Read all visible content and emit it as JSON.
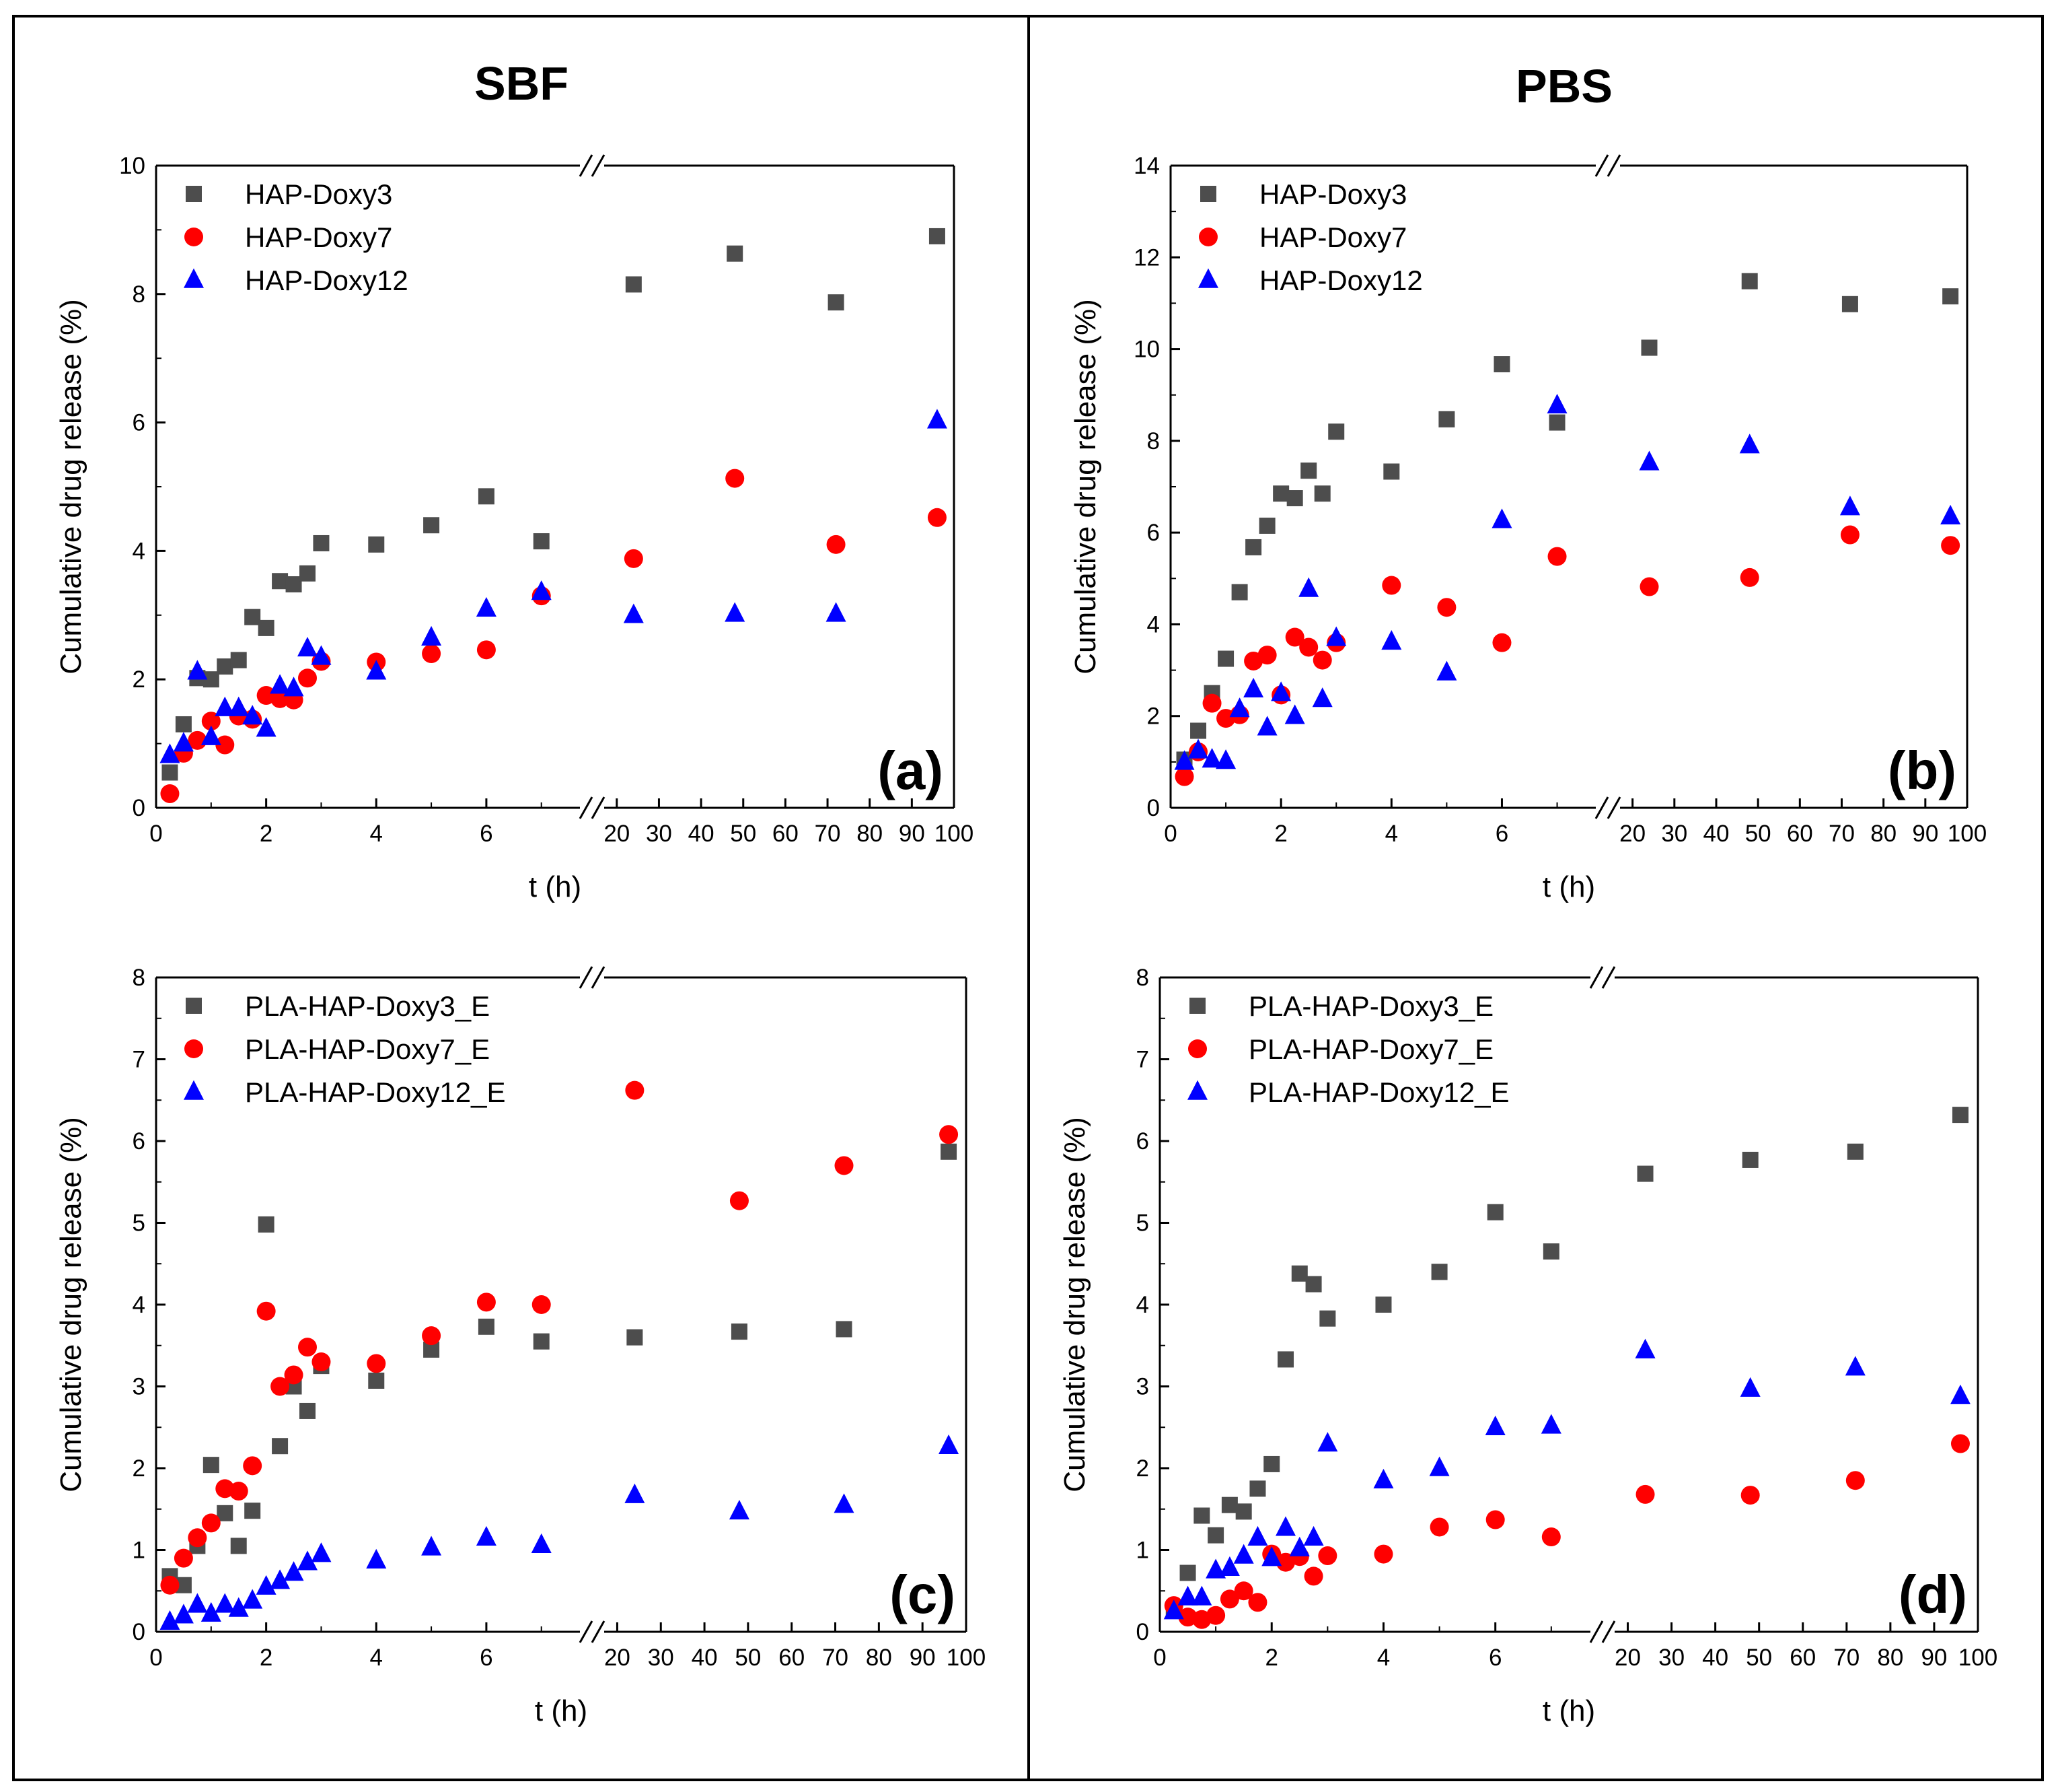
{
  "columns": [
    "SBF",
    "PBS"
  ],
  "chart_data": [
    {
      "type": "scatter",
      "panel": "(a)",
      "medium": "SBF",
      "xlabel": "t (h)",
      "ylabel": "Cumulative drug release (%)",
      "ylim": [
        0,
        10
      ],
      "yticks": [
        0,
        2,
        4,
        6,
        8,
        10
      ],
      "xlim_left": [
        0,
        7.7
      ],
      "xlim_right": [
        17,
        100
      ],
      "x_break": true,
      "xticks_left": [
        0,
        2,
        4,
        6
      ],
      "xticks_right": [
        20,
        30,
        40,
        50,
        60,
        70,
        80,
        90,
        100
      ],
      "legend_position": "top-left",
      "series": [
        {
          "name": "HAP-Doxy3",
          "marker": "square",
          "color": "#4d4d4d",
          "x": [
            0.25,
            0.5,
            0.75,
            1,
            1.25,
            1.5,
            1.75,
            2,
            2.25,
            2.5,
            2.75,
            3,
            4,
            5,
            6,
            7,
            24,
            48,
            72,
            96
          ],
          "y": [
            0.55,
            1.3,
            2.02,
            2.0,
            2.2,
            2.3,
            2.97,
            2.8,
            3.53,
            3.48,
            3.65,
            4.12,
            4.1,
            4.4,
            4.85,
            4.15,
            8.15,
            8.63,
            7.87,
            8.9
          ]
        },
        {
          "name": "HAP-Doxy7",
          "marker": "circle",
          "color": "#ff0000",
          "x": [
            0.25,
            0.5,
            0.75,
            1,
            1.25,
            1.5,
            1.75,
            2,
            2.25,
            2.5,
            2.75,
            3,
            4,
            5,
            6,
            7,
            24,
            48,
            72,
            96
          ],
          "y": [
            0.22,
            0.85,
            1.05,
            1.35,
            0.98,
            1.43,
            1.38,
            1.75,
            1.7,
            1.68,
            2.02,
            2.28,
            2.27,
            2.4,
            2.46,
            3.3,
            3.88,
            5.13,
            4.1,
            4.52
          ]
        },
        {
          "name": "HAP-Doxy12",
          "marker": "triangle",
          "color": "#0000ff",
          "x": [
            0.25,
            0.5,
            0.75,
            1,
            1.25,
            1.5,
            1.75,
            2,
            2.25,
            2.5,
            2.75,
            3,
            4,
            5,
            6,
            7,
            24,
            48,
            72,
            96
          ],
          "y": [
            0.82,
            1.0,
            2.12,
            1.1,
            1.55,
            1.55,
            1.42,
            1.23,
            1.9,
            1.86,
            2.48,
            2.35,
            2.12,
            2.65,
            3.1,
            3.36,
            3.0,
            3.02,
            3.02,
            6.03
          ]
        }
      ]
    },
    {
      "type": "scatter",
      "panel": "(b)",
      "medium": "PBS",
      "xlabel": "t (h)",
      "ylabel": "Cumulative drug release (%)",
      "ylim": [
        0,
        14
      ],
      "yticks": [
        0,
        2,
        4,
        6,
        8,
        10,
        12,
        14
      ],
      "xlim_left": [
        0,
        7.7
      ],
      "xlim_right": [
        17,
        100
      ],
      "x_break": true,
      "xticks_left": [
        0,
        2,
        4,
        6
      ],
      "xticks_right": [
        20,
        30,
        40,
        50,
        60,
        70,
        80,
        90,
        100
      ],
      "legend_position": "top-left",
      "series": [
        {
          "name": "HAP-Doxy3",
          "marker": "square",
          "color": "#4d4d4d",
          "x": [
            0.25,
            0.5,
            0.75,
            1,
            1.25,
            1.5,
            1.75,
            2,
            2.25,
            2.5,
            2.75,
            3,
            4,
            5,
            6,
            7,
            24,
            48,
            72,
            96
          ],
          "y": [
            1.05,
            1.68,
            2.5,
            3.25,
            4.7,
            5.68,
            6.15,
            6.85,
            6.75,
            7.35,
            6.85,
            8.2,
            7.33,
            8.47,
            9.67,
            8.4,
            10.03,
            11.48,
            10.98,
            11.15
          ]
        },
        {
          "name": "HAP-Doxy7",
          "marker": "circle",
          "color": "#ff0000",
          "x": [
            0.25,
            0.5,
            0.75,
            1,
            1.25,
            1.5,
            1.75,
            2,
            2.25,
            2.5,
            2.75,
            3,
            4,
            5,
            6,
            7,
            24,
            48,
            72,
            96
          ],
          "y": [
            0.68,
            1.22,
            2.28,
            1.95,
            2.03,
            3.2,
            3.33,
            2.46,
            3.72,
            3.5,
            3.22,
            3.6,
            4.85,
            4.37,
            3.6,
            5.48,
            4.82,
            5.02,
            5.95,
            5.72
          ]
        },
        {
          "name": "HAP-Doxy12",
          "marker": "triangle",
          "color": "#0000ff",
          "x": [
            0.25,
            0.5,
            0.75,
            1,
            1.25,
            1.5,
            1.75,
            2,
            2.25,
            2.5,
            2.75,
            3,
            4,
            5,
            6,
            7,
            24,
            48,
            72,
            96
          ],
          "y": [
            1.0,
            1.25,
            1.05,
            1.02,
            2.15,
            2.58,
            1.75,
            2.5,
            2.0,
            4.77,
            2.37,
            3.7,
            3.62,
            2.95,
            6.27,
            8.77,
            7.53,
            7.9,
            6.55,
            6.35
          ]
        }
      ]
    },
    {
      "type": "scatter",
      "panel": "(c)",
      "medium": "SBF",
      "xlabel": "t (h)",
      "ylabel": "Cumulative drug release (%)",
      "ylim": [
        0,
        8
      ],
      "yticks": [
        0,
        1,
        2,
        3,
        4,
        5,
        6,
        7,
        8
      ],
      "xlim_left": [
        0,
        7.7
      ],
      "xlim_right": [
        17,
        100
      ],
      "x_break": true,
      "xticks_left": [
        0,
        2,
        4,
        6
      ],
      "xticks_right": [
        20,
        30,
        40,
        50,
        60,
        70,
        80,
        90,
        100
      ],
      "legend_position": "top-left",
      "series": [
        {
          "name": "PLA-HAP-Doxy3_E",
          "marker": "square",
          "color": "#4d4d4d",
          "x": [
            0.25,
            0.5,
            0.75,
            1,
            1.25,
            1.5,
            1.75,
            2,
            2.25,
            2.5,
            2.75,
            3,
            4,
            5,
            6,
            7,
            24,
            48,
            72,
            96
          ],
          "y": [
            0.68,
            0.57,
            1.05,
            2.04,
            1.45,
            1.05,
            1.48,
            4.98,
            2.27,
            3.0,
            2.7,
            3.25,
            3.07,
            3.45,
            3.73,
            3.55,
            3.6,
            3.67,
            3.7,
            5.87
          ]
        },
        {
          "name": "PLA-HAP-Doxy7_E",
          "marker": "circle",
          "color": "#ff0000",
          "x": [
            0.25,
            0.5,
            0.75,
            1,
            1.25,
            1.5,
            1.75,
            2,
            2.25,
            2.5,
            2.75,
            3,
            4,
            5,
            6,
            7,
            24,
            48,
            72,
            96
          ],
          "y": [
            0.57,
            0.9,
            1.15,
            1.33,
            1.75,
            1.72,
            2.03,
            3.92,
            3.0,
            3.14,
            3.48,
            3.3,
            3.28,
            3.62,
            4.03,
            4.0,
            6.62,
            5.27,
            5.7,
            6.08
          ]
        },
        {
          "name": "PLA-HAP-Doxy12_E",
          "marker": "triangle",
          "color": "#0000ff",
          "x": [
            0.25,
            0.5,
            0.75,
            1,
            1.25,
            1.5,
            1.75,
            2,
            2.25,
            2.5,
            2.75,
            3,
            4,
            5,
            6,
            7,
            24,
            48,
            72,
            96
          ],
          "y": [
            0.12,
            0.2,
            0.33,
            0.22,
            0.33,
            0.28,
            0.38,
            0.55,
            0.62,
            0.72,
            0.85,
            0.95,
            0.87,
            1.03,
            1.15,
            1.06,
            1.67,
            1.47,
            1.55,
            2.27
          ]
        }
      ]
    },
    {
      "type": "scatter",
      "panel": "(d)",
      "medium": "PBS",
      "xlabel": "t (h)",
      "ylabel": "Cumulative drug release (%)",
      "ylim": [
        0,
        8
      ],
      "yticks": [
        0,
        1,
        2,
        3,
        4,
        5,
        6,
        7,
        8
      ],
      "xlim_left": [
        0,
        7.7
      ],
      "xlim_right": [
        17,
        100
      ],
      "x_break": true,
      "xticks_left": [
        0,
        2,
        4,
        6
      ],
      "xticks_right": [
        20,
        30,
        40,
        50,
        60,
        70,
        80,
        90,
        100
      ],
      "legend_position": "top-left",
      "series": [
        {
          "name": "PLA-HAP-Doxy3_E",
          "marker": "square",
          "color": "#4d4d4d",
          "x": [
            0.25,
            0.5,
            0.75,
            1,
            1.25,
            1.5,
            1.75,
            2,
            2.25,
            2.5,
            2.75,
            3,
            4,
            5,
            6,
            7,
            24,
            48,
            72,
            96
          ],
          "y": [
            0.27,
            0.72,
            1.42,
            1.18,
            1.55,
            1.47,
            1.75,
            2.05,
            3.33,
            4.38,
            4.25,
            3.83,
            4.0,
            4.4,
            5.13,
            4.65,
            5.6,
            5.77,
            5.87,
            6.32
          ]
        },
        {
          "name": "PLA-HAP-Doxy7_E",
          "marker": "circle",
          "color": "#ff0000",
          "x": [
            0.25,
            0.5,
            0.75,
            1,
            1.25,
            1.5,
            1.75,
            2,
            2.25,
            2.5,
            2.75,
            3,
            4,
            5,
            6,
            7,
            24,
            48,
            72,
            96
          ],
          "y": [
            0.32,
            0.18,
            0.15,
            0.2,
            0.4,
            0.5,
            0.36,
            0.95,
            0.85,
            0.92,
            0.68,
            0.93,
            0.95,
            1.28,
            1.37,
            1.16,
            1.68,
            1.67,
            1.85,
            2.3
          ]
        },
        {
          "name": "PLA-HAP-Doxy12_E",
          "marker": "triangle",
          "color": "#0000ff",
          "x": [
            0.25,
            0.5,
            0.75,
            1,
            1.25,
            1.5,
            1.75,
            2,
            2.25,
            2.5,
            2.75,
            3,
            4,
            5,
            6,
            7,
            24,
            48,
            72,
            96
          ],
          "y": [
            0.25,
            0.42,
            0.42,
            0.75,
            0.78,
            0.93,
            1.15,
            0.9,
            1.27,
            1.02,
            1.15,
            2.3,
            1.85,
            2.0,
            2.5,
            2.52,
            3.44,
            2.97,
            3.23,
            2.88
          ]
        }
      ]
    }
  ]
}
